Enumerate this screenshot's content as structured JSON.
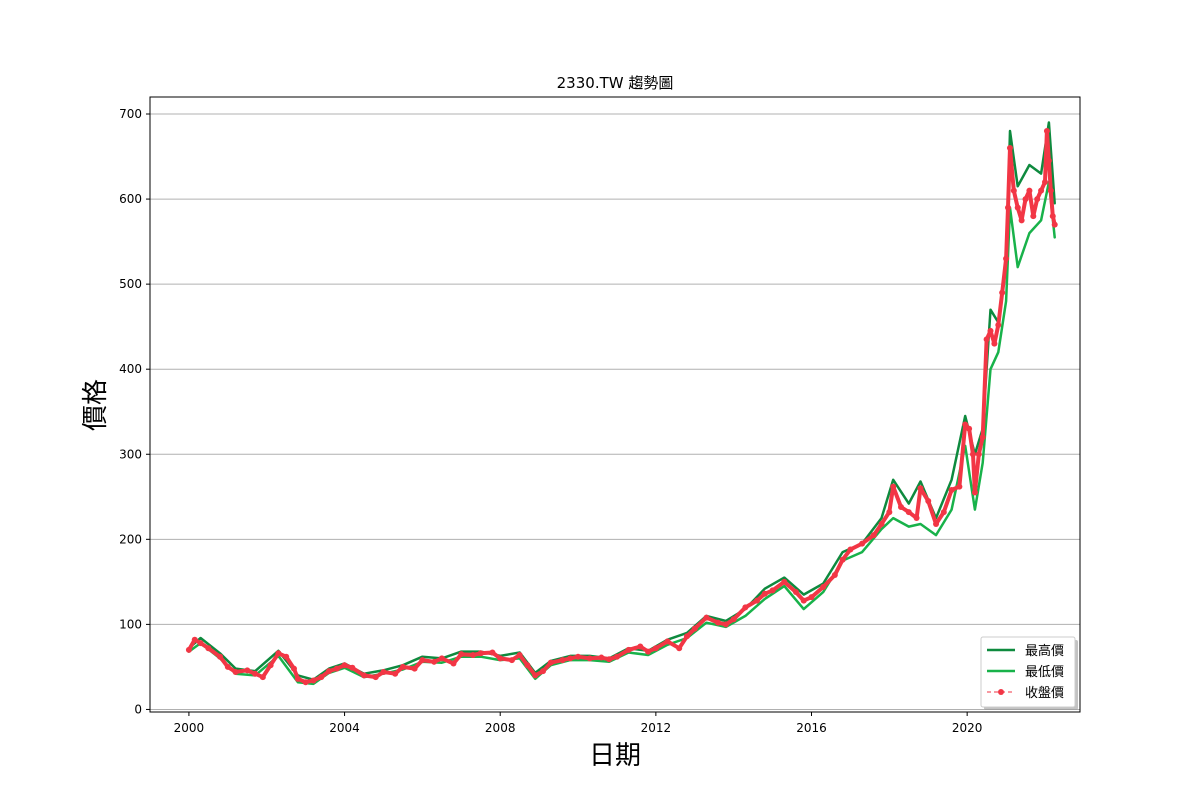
{
  "chart_data": {
    "type": "line",
    "title": "2330.TW 趨勢圖",
    "xlabel": "日期",
    "ylabel": "價格",
    "x_ticks": [
      "2000",
      "2004",
      "2008",
      "2012",
      "2016",
      "2020"
    ],
    "y_ticks": [
      "0",
      "100",
      "200",
      "300",
      "400",
      "500",
      "600",
      "700"
    ],
    "xlim": [
      1999,
      2022.9
    ],
    "ylim": [
      -3,
      720
    ],
    "grid": "horizontal",
    "legend_position": "bottom-right",
    "colors": {
      "high": "#0e8a3e",
      "low": "#18b24a",
      "close": "#f23645"
    },
    "series": [
      {
        "name": "最高價",
        "style": "line",
        "x": [
          2000.0,
          2000.3,
          2000.8,
          2001.2,
          2001.7,
          2002.3,
          2002.8,
          2003.2,
          2003.6,
          2004.0,
          2004.5,
          2005.0,
          2005.5,
          2006.0,
          2006.5,
          2007.0,
          2007.5,
          2008.0,
          2008.5,
          2008.9,
          2009.3,
          2009.8,
          2010.3,
          2010.8,
          2011.3,
          2011.8,
          2012.3,
          2012.8,
          2013.3,
          2013.8,
          2014.3,
          2014.8,
          2015.3,
          2015.8,
          2016.3,
          2016.8,
          2017.3,
          2017.8,
          2018.1,
          2018.5,
          2018.8,
          2019.2,
          2019.6,
          2019.95,
          2020.2,
          2020.4,
          2020.6,
          2020.8,
          2021.0,
          2021.1,
          2021.3,
          2021.6,
          2021.9,
          2022.1,
          2022.25
        ],
        "values": [
          72,
          84,
          66,
          48,
          45,
          69,
          40,
          35,
          48,
          54,
          42,
          46,
          52,
          62,
          60,
          68,
          68,
          63,
          67,
          43,
          57,
          63,
          63,
          60,
          72,
          69,
          82,
          90,
          110,
          104,
          118,
          142,
          155,
          135,
          148,
          185,
          195,
          225,
          270,
          242,
          268,
          225,
          270,
          345,
          300,
          330,
          470,
          455,
          520,
          680,
          615,
          640,
          630,
          690,
          595
        ]
      },
      {
        "name": "最低價",
        "style": "line",
        "x": [
          2000.0,
          2000.3,
          2000.8,
          2001.2,
          2001.7,
          2002.3,
          2002.8,
          2003.2,
          2003.6,
          2004.0,
          2004.5,
          2005.0,
          2005.5,
          2006.0,
          2006.5,
          2007.0,
          2007.5,
          2008.0,
          2008.5,
          2008.9,
          2009.3,
          2009.8,
          2010.3,
          2010.8,
          2011.3,
          2011.8,
          2012.3,
          2012.8,
          2013.3,
          2013.8,
          2014.3,
          2014.8,
          2015.3,
          2015.8,
          2016.3,
          2016.8,
          2017.3,
          2017.8,
          2018.1,
          2018.5,
          2018.8,
          2019.2,
          2019.6,
          2019.95,
          2020.2,
          2020.4,
          2020.6,
          2020.8,
          2021.0,
          2021.1,
          2021.3,
          2021.6,
          2021.9,
          2022.1,
          2022.25
        ],
        "values": [
          68,
          78,
          60,
          42,
          40,
          63,
          32,
          30,
          43,
          49,
          38,
          42,
          47,
          56,
          55,
          62,
          62,
          58,
          60,
          36,
          52,
          58,
          58,
          56,
          67,
          64,
          76,
          84,
          102,
          97,
          110,
          130,
          145,
          118,
          138,
          175,
          185,
          212,
          225,
          215,
          218,
          205,
          235,
          310,
          235,
          290,
          400,
          420,
          480,
          590,
          520,
          560,
          575,
          620,
          555
        ]
      },
      {
        "name": "收盤價",
        "style": "dashed-dot",
        "x": [
          2000.0,
          2000.15,
          2000.3,
          2000.5,
          2000.8,
          2001.0,
          2001.2,
          2001.5,
          2001.7,
          2001.9,
          2002.1,
          2002.3,
          2002.5,
          2002.7,
          2002.8,
          2003.0,
          2003.2,
          2003.4,
          2003.6,
          2003.8,
          2004.0,
          2004.2,
          2004.5,
          2004.8,
          2005.0,
          2005.3,
          2005.5,
          2005.8,
          2006.0,
          2006.3,
          2006.5,
          2006.8,
          2007.0,
          2007.3,
          2007.5,
          2007.8,
          2008.0,
          2008.3,
          2008.5,
          2008.7,
          2008.9,
          2009.1,
          2009.3,
          2009.6,
          2009.8,
          2010.0,
          2010.3,
          2010.6,
          2010.8,
          2011.0,
          2011.3,
          2011.6,
          2011.8,
          2012.0,
          2012.3,
          2012.6,
          2012.8,
          2013.0,
          2013.3,
          2013.6,
          2013.8,
          2014.0,
          2014.3,
          2014.6,
          2014.8,
          2015.0,
          2015.3,
          2015.6,
          2015.8,
          2016.0,
          2016.3,
          2016.6,
          2016.8,
          2017.0,
          2017.3,
          2017.6,
          2017.8,
          2018.0,
          2018.1,
          2018.3,
          2018.5,
          2018.7,
          2018.8,
          2019.0,
          2019.2,
          2019.4,
          2019.6,
          2019.8,
          2019.95,
          2020.05,
          2020.15,
          2020.2,
          2020.3,
          2020.4,
          2020.5,
          2020.6,
          2020.7,
          2020.8,
          2020.9,
          2021.0,
          2021.05,
          2021.1,
          2021.2,
          2021.3,
          2021.4,
          2021.5,
          2021.6,
          2021.7,
          2021.8,
          2021.9,
          2022.0,
          2022.05,
          2022.1,
          2022.15,
          2022.2,
          2022.25
        ],
        "values": [
          70,
          82,
          78,
          72,
          62,
          50,
          44,
          46,
          42,
          38,
          52,
          66,
          62,
          48,
          36,
          32,
          34,
          38,
          45,
          48,
          52,
          49,
          40,
          38,
          44,
          42,
          50,
          48,
          58,
          56,
          60,
          54,
          65,
          64,
          66,
          67,
          60,
          58,
          64,
          52,
          40,
          45,
          55,
          58,
          60,
          62,
          60,
          61,
          59,
          62,
          70,
          74,
          68,
          72,
          80,
          72,
          86,
          95,
          108,
          102,
          100,
          106,
          120,
          128,
          136,
          140,
          150,
          138,
          128,
          132,
          144,
          158,
          176,
          188,
          195,
          205,
          218,
          232,
          262,
          238,
          232,
          225,
          260,
          245,
          218,
          232,
          258,
          262,
          335,
          330,
          300,
          255,
          300,
          320,
          435,
          445,
          430,
          452,
          490,
          530,
          590,
          660,
          610,
          590,
          575,
          600,
          610,
          580,
          600,
          610,
          620,
          680,
          645,
          610,
          580,
          570
        ]
      }
    ]
  }
}
